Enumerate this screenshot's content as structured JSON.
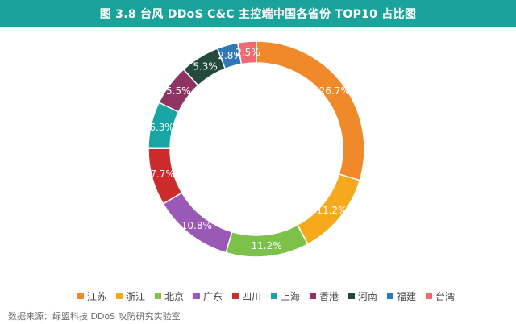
{
  "title": "图 3.8 台风 DDoS C&C 主控端中国各省份 TOP10 占比图",
  "source": "数据来源：绿盟科技 DDoS 攻防研究实验室",
  "colors": {
    "header_bg": "#1aa39a",
    "label_text": "#ffffff"
  },
  "chart_data": {
    "type": "pie",
    "style": "donut",
    "legend_position": "bottom",
    "series": [
      {
        "name": "江苏",
        "value": 26.7,
        "label": "26.7%",
        "color": "#f0892a"
      },
      {
        "name": "浙江",
        "value": 11.2,
        "label": "11.2%",
        "color": "#f7a91d"
      },
      {
        "name": "北京",
        "value": 11.2,
        "label": "11.2%",
        "color": "#7cc24a"
      },
      {
        "name": "广东",
        "value": 10.8,
        "label": "10.8%",
        "color": "#9b59b6"
      },
      {
        "name": "四川",
        "value": 7.7,
        "label": "7.7%",
        "color": "#cc2b2b"
      },
      {
        "name": "上海",
        "value": 6.3,
        "label": "6.3%",
        "color": "#17a6a3"
      },
      {
        "name": "香港",
        "value": 5.5,
        "label": "5.5%",
        "color": "#8e3462"
      },
      {
        "name": "河南",
        "value": 5.3,
        "label": "5.3%",
        "color": "#244a3d"
      },
      {
        "name": "福建",
        "value": 2.8,
        "label": "2.8%",
        "color": "#2f78b8"
      },
      {
        "name": "台湾",
        "value": 2.5,
        "label": "2.5%",
        "color": "#ee6b73"
      }
    ]
  }
}
